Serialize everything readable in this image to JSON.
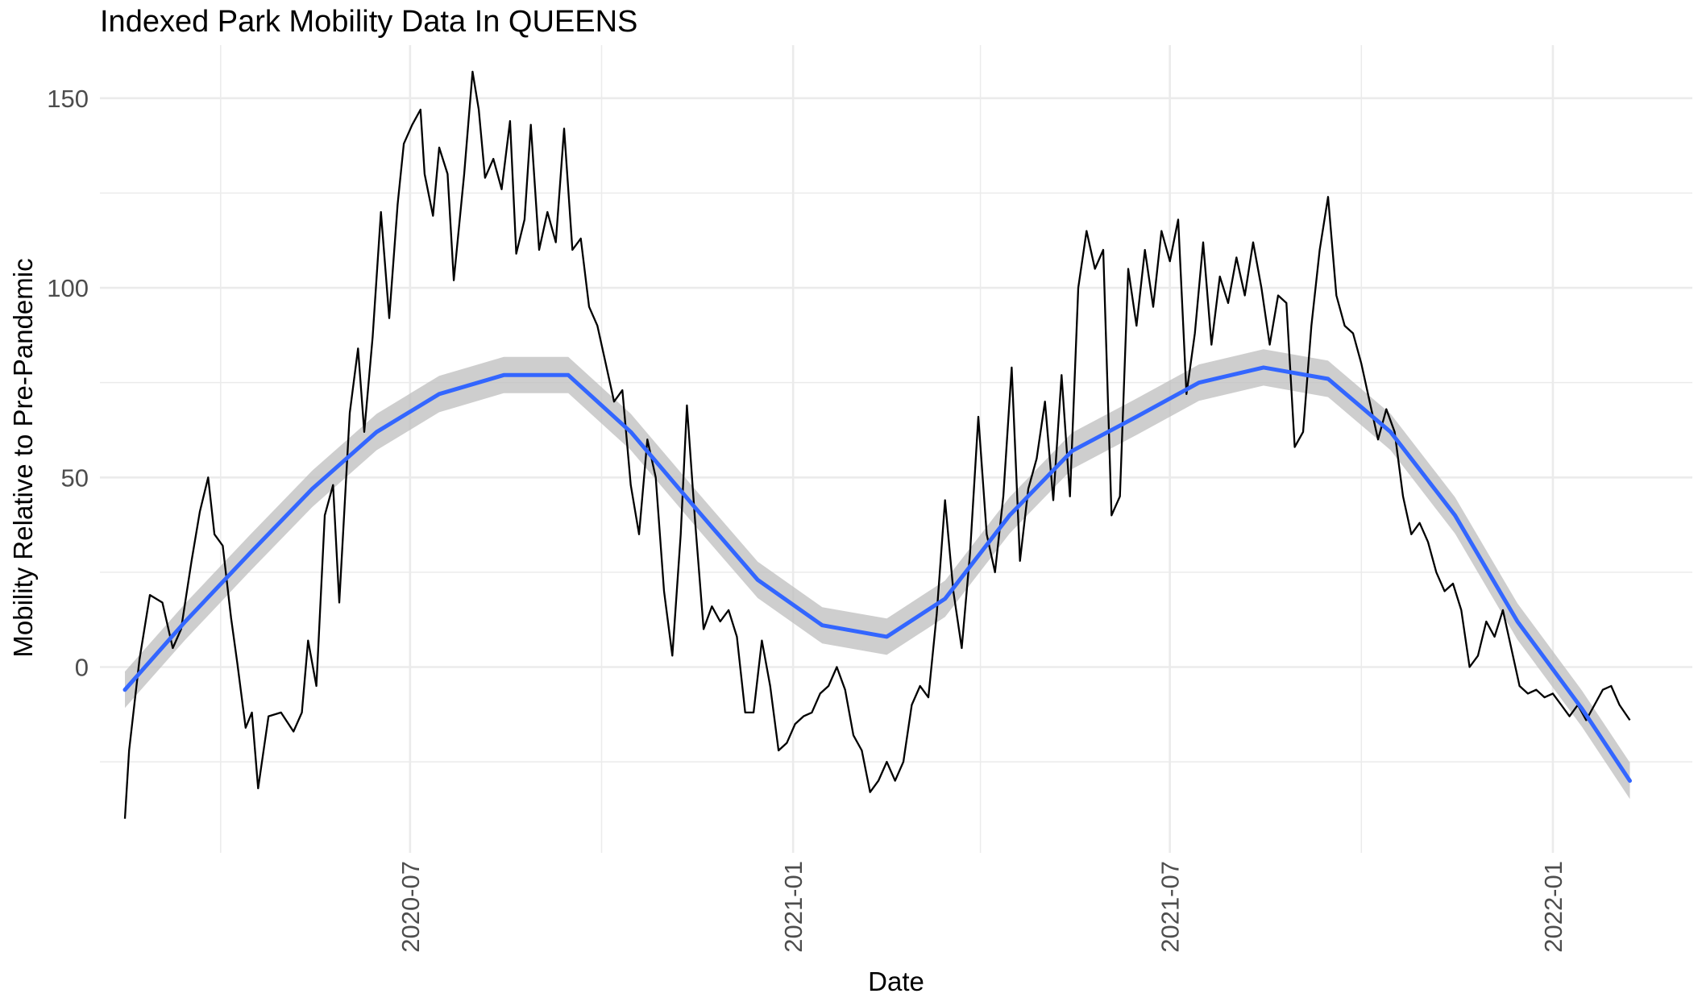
{
  "chart_data": {
    "type": "line",
    "title": "Indexed Park Mobility Data In QUEENS",
    "xlabel": "Date",
    "ylabel": "Mobility Relative to Pre-Pandemic",
    "x_tick_labels": [
      "2020-07",
      "2021-01",
      "2021-07",
      "2022-01"
    ],
    "y_tick_labels": [
      "0",
      "50",
      "100",
      "150"
    ],
    "ylim": [
      -49,
      164
    ],
    "xlim": [
      "2020-02-03",
      "2022-03-09"
    ],
    "grid": true,
    "colors": {
      "data_line": "#000000",
      "smooth_line": "#3366ff",
      "ribbon": "#bdbdbd",
      "grid": "#ebebeb"
    },
    "series": [
      {
        "kind": "observed",
        "points": [
          [
            "2020-02-15",
            -40
          ],
          [
            "2020-02-17",
            -22
          ],
          [
            "2020-02-22",
            2
          ],
          [
            "2020-02-27",
            19
          ],
          [
            "2020-03-04",
            17
          ],
          [
            "2020-03-09",
            5
          ],
          [
            "2020-03-13",
            10
          ],
          [
            "2020-03-18",
            28
          ],
          [
            "2020-03-22",
            41
          ],
          [
            "2020-03-26",
            50
          ],
          [
            "2020-03-29",
            35
          ],
          [
            "2020-04-02",
            32
          ],
          [
            "2020-04-06",
            13
          ],
          [
            "2020-04-09",
            1
          ],
          [
            "2020-04-13",
            -16
          ],
          [
            "2020-04-16",
            -12
          ],
          [
            "2020-04-19",
            -32
          ],
          [
            "2020-04-24",
            -13
          ],
          [
            "2020-04-30",
            -12
          ],
          [
            "2020-05-06",
            -17
          ],
          [
            "2020-05-10",
            -12
          ],
          [
            "2020-05-13",
            7
          ],
          [
            "2020-05-17",
            -5
          ],
          [
            "2020-05-21",
            40
          ],
          [
            "2020-05-25",
            48
          ],
          [
            "2020-05-28",
            17
          ],
          [
            "2020-06-02",
            67
          ],
          [
            "2020-06-06",
            84
          ],
          [
            "2020-06-09",
            62
          ],
          [
            "2020-06-13",
            87
          ],
          [
            "2020-06-17",
            120
          ],
          [
            "2020-06-21",
            92
          ],
          [
            "2020-06-25",
            122
          ],
          [
            "2020-06-28",
            138
          ],
          [
            "2020-07-02",
            143
          ],
          [
            "2020-07-06",
            147
          ],
          [
            "2020-07-08",
            130
          ],
          [
            "2020-07-12",
            119
          ],
          [
            "2020-07-15",
            137
          ],
          [
            "2020-07-19",
            130
          ],
          [
            "2020-07-22",
            102
          ],
          [
            "2020-07-27",
            130
          ],
          [
            "2020-07-31",
            157
          ],
          [
            "2020-08-03",
            147
          ],
          [
            "2020-08-06",
            129
          ],
          [
            "2020-08-10",
            134
          ],
          [
            "2020-08-14",
            126
          ],
          [
            "2020-08-18",
            144
          ],
          [
            "2020-08-21",
            109
          ],
          [
            "2020-08-25",
            118
          ],
          [
            "2020-08-28",
            143
          ],
          [
            "2020-09-01",
            110
          ],
          [
            "2020-09-05",
            120
          ],
          [
            "2020-09-09",
            112
          ],
          [
            "2020-09-13",
            142
          ],
          [
            "2020-09-17",
            110
          ],
          [
            "2020-09-21",
            113
          ],
          [
            "2020-09-25",
            95
          ],
          [
            "2020-09-29",
            90
          ],
          [
            "2020-10-03",
            80
          ],
          [
            "2020-10-07",
            70
          ],
          [
            "2020-10-11",
            73
          ],
          [
            "2020-10-15",
            48
          ],
          [
            "2020-10-19",
            35
          ],
          [
            "2020-10-23",
            60
          ],
          [
            "2020-10-27",
            50
          ],
          [
            "2020-10-31",
            20
          ],
          [
            "2020-11-04",
            3
          ],
          [
            "2020-11-08",
            35
          ],
          [
            "2020-11-11",
            69
          ],
          [
            "2020-11-15",
            38
          ],
          [
            "2020-11-19",
            10
          ],
          [
            "2020-11-23",
            16
          ],
          [
            "2020-11-27",
            12
          ],
          [
            "2020-12-01",
            15
          ],
          [
            "2020-12-05",
            8
          ],
          [
            "2020-12-09",
            -12
          ],
          [
            "2020-12-13",
            -12
          ],
          [
            "2020-12-17",
            7
          ],
          [
            "2020-12-21",
            -5
          ],
          [
            "2020-12-25",
            -22
          ],
          [
            "2020-12-29",
            -20
          ],
          [
            "2021-01-02",
            -15
          ],
          [
            "2021-01-06",
            -13
          ],
          [
            "2021-01-10",
            -12
          ],
          [
            "2021-01-14",
            -7
          ],
          [
            "2021-01-18",
            -5
          ],
          [
            "2021-01-22",
            0
          ],
          [
            "2021-01-26",
            -6
          ],
          [
            "2021-01-30",
            -18
          ],
          [
            "2021-02-03",
            -22
          ],
          [
            "2021-02-07",
            -33
          ],
          [
            "2021-02-11",
            -30
          ],
          [
            "2021-02-15",
            -25
          ],
          [
            "2021-02-19",
            -30
          ],
          [
            "2021-02-23",
            -25
          ],
          [
            "2021-02-27",
            -10
          ],
          [
            "2021-03-03",
            -5
          ],
          [
            "2021-03-07",
            -8
          ],
          [
            "2021-03-11",
            14
          ],
          [
            "2021-03-15",
            44
          ],
          [
            "2021-03-19",
            20
          ],
          [
            "2021-03-23",
            5
          ],
          [
            "2021-03-27",
            30
          ],
          [
            "2021-03-31",
            66
          ],
          [
            "2021-04-04",
            35
          ],
          [
            "2021-04-08",
            25
          ],
          [
            "2021-04-12",
            45
          ],
          [
            "2021-04-16",
            79
          ],
          [
            "2021-04-20",
            28
          ],
          [
            "2021-04-24",
            47
          ],
          [
            "2021-04-28",
            55
          ],
          [
            "2021-05-02",
            70
          ],
          [
            "2021-05-06",
            44
          ],
          [
            "2021-05-10",
            77
          ],
          [
            "2021-05-14",
            45
          ],
          [
            "2021-05-18",
            100
          ],
          [
            "2021-05-22",
            115
          ],
          [
            "2021-05-26",
            105
          ],
          [
            "2021-05-30",
            110
          ],
          [
            "2021-06-03",
            40
          ],
          [
            "2021-06-07",
            45
          ],
          [
            "2021-06-11",
            105
          ],
          [
            "2021-06-15",
            90
          ],
          [
            "2021-06-19",
            110
          ],
          [
            "2021-06-23",
            95
          ],
          [
            "2021-06-27",
            115
          ],
          [
            "2021-07-01",
            107
          ],
          [
            "2021-07-05",
            118
          ],
          [
            "2021-07-09",
            72
          ],
          [
            "2021-07-13",
            88
          ],
          [
            "2021-07-17",
            112
          ],
          [
            "2021-07-21",
            85
          ],
          [
            "2021-07-25",
            103
          ],
          [
            "2021-07-29",
            96
          ],
          [
            "2021-08-02",
            108
          ],
          [
            "2021-08-06",
            98
          ],
          [
            "2021-08-10",
            112
          ],
          [
            "2021-08-14",
            100
          ],
          [
            "2021-08-18",
            85
          ],
          [
            "2021-08-22",
            98
          ],
          [
            "2021-08-26",
            96
          ],
          [
            "2021-08-30",
            58
          ],
          [
            "2021-09-03",
            62
          ],
          [
            "2021-09-07",
            90
          ],
          [
            "2021-09-11",
            110
          ],
          [
            "2021-09-15",
            124
          ],
          [
            "2021-09-19",
            98
          ],
          [
            "2021-09-23",
            90
          ],
          [
            "2021-09-27",
            88
          ],
          [
            "2021-10-01",
            80
          ],
          [
            "2021-10-05",
            70
          ],
          [
            "2021-10-09",
            60
          ],
          [
            "2021-10-13",
            68
          ],
          [
            "2021-10-17",
            62
          ],
          [
            "2021-10-21",
            45
          ],
          [
            "2021-10-25",
            35
          ],
          [
            "2021-10-29",
            38
          ],
          [
            "2021-11-02",
            33
          ],
          [
            "2021-11-06",
            25
          ],
          [
            "2021-11-10",
            20
          ],
          [
            "2021-11-14",
            22
          ],
          [
            "2021-11-18",
            15
          ],
          [
            "2021-11-22",
            0
          ],
          [
            "2021-11-26",
            3
          ],
          [
            "2021-11-30",
            12
          ],
          [
            "2021-12-04",
            8
          ],
          [
            "2021-12-08",
            15
          ],
          [
            "2021-12-12",
            5
          ],
          [
            "2021-12-16",
            -5
          ],
          [
            "2021-12-20",
            -7
          ],
          [
            "2021-12-24",
            -6
          ],
          [
            "2021-12-28",
            -8
          ],
          [
            "2022-01-01",
            -7
          ],
          [
            "2022-01-05",
            -10
          ],
          [
            "2022-01-09",
            -13
          ],
          [
            "2022-01-13",
            -10
          ],
          [
            "2022-01-17",
            -14
          ],
          [
            "2022-01-21",
            -10
          ],
          [
            "2022-01-25",
            -6
          ],
          [
            "2022-01-29",
            -5
          ],
          [
            "2022-02-02",
            -10
          ],
          [
            "2022-02-07",
            -14
          ]
        ]
      },
      {
        "kind": "loess_smooth",
        "band_halfwidth": 3,
        "points": [
          [
            "2020-02-15",
            -6
          ],
          [
            "2020-03-15",
            12
          ],
          [
            "2020-04-15",
            30
          ],
          [
            "2020-05-15",
            47
          ],
          [
            "2020-06-15",
            62
          ],
          [
            "2020-07-15",
            72
          ],
          [
            "2020-08-15",
            77
          ],
          [
            "2020-09-15",
            77
          ],
          [
            "2020-10-15",
            62
          ],
          [
            "2020-11-15",
            42
          ],
          [
            "2020-12-15",
            23
          ],
          [
            "2021-01-15",
            11
          ],
          [
            "2021-02-15",
            8
          ],
          [
            "2021-03-15",
            18
          ],
          [
            "2021-04-15",
            40
          ],
          [
            "2021-05-15",
            57
          ],
          [
            "2021-06-15",
            66
          ],
          [
            "2021-07-15",
            75
          ],
          [
            "2021-08-15",
            79
          ],
          [
            "2021-09-15",
            76
          ],
          [
            "2021-10-15",
            62
          ],
          [
            "2021-11-15",
            40
          ],
          [
            "2021-12-15",
            12
          ],
          [
            "2022-01-15",
            -11
          ],
          [
            "2022-02-07",
            -30
          ]
        ]
      }
    ]
  }
}
